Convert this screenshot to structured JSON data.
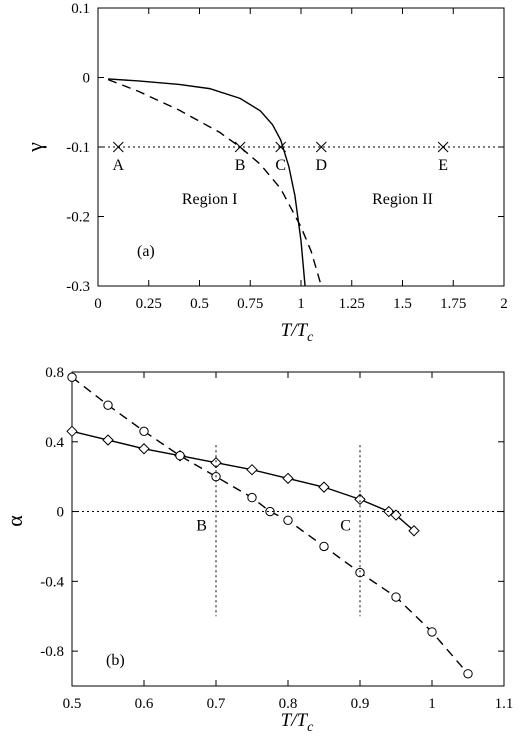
{
  "chart_data": [
    {
      "type": "line",
      "panel_label": "(a)",
      "xlabel": {
        "main": "T/T",
        "sub": "c"
      },
      "ylabel": "γ",
      "xlim": [
        0,
        2
      ],
      "ylim": [
        -0.3,
        0.1
      ],
      "xticks": [
        0,
        0.25,
        0.5,
        0.75,
        1,
        1.25,
        1.5,
        1.75,
        2
      ],
      "xtick_labels": [
        "0",
        "0.25",
        "0.5",
        "0.75",
        "1",
        "1.25",
        "1.5",
        "1.75",
        "2"
      ],
      "yticks": [
        0.1,
        0,
        -0.1,
        -0.2,
        -0.3
      ],
      "ytick_labels": [
        "0.1",
        "0",
        "-0.1",
        "-0.2",
        "-0.3"
      ],
      "grid": false,
      "series": [
        {
          "style": "solid",
          "x": [
            0.05,
            0.2,
            0.4,
            0.55,
            0.7,
            0.8,
            0.86,
            0.9,
            0.94,
            0.97,
            1.0,
            1.02
          ],
          "y": [
            -0.002,
            -0.005,
            -0.01,
            -0.016,
            -0.03,
            -0.048,
            -0.068,
            -0.09,
            -0.128,
            -0.17,
            -0.235,
            -0.3
          ]
        },
        {
          "style": "dashed",
          "x": [
            0.05,
            0.2,
            0.4,
            0.6,
            0.7,
            0.8,
            0.9,
            1.0,
            1.05,
            1.1
          ],
          "y": [
            -0.003,
            -0.02,
            -0.047,
            -0.079,
            -0.1,
            -0.125,
            -0.16,
            -0.215,
            -0.25,
            -0.3
          ]
        },
        {
          "style": "dotted",
          "x": [
            0,
            2
          ],
          "y": [
            -0.1,
            -0.1
          ]
        },
        {
          "style": "cross",
          "x": [
            0.1,
            0.7,
            0.9,
            1.1,
            1.7
          ],
          "y": [
            -0.1,
            -0.1,
            -0.1,
            -0.1,
            -0.1
          ]
        }
      ],
      "point_labels": [
        {
          "text": "A",
          "x": 0.1,
          "y": -0.133
        },
        {
          "text": "B",
          "x": 0.7,
          "y": -0.133
        },
        {
          "text": "C",
          "x": 0.9,
          "y": -0.133
        },
        {
          "text": "D",
          "x": 1.1,
          "y": -0.133
        },
        {
          "text": "E",
          "x": 1.7,
          "y": -0.133
        }
      ],
      "annotations": [
        {
          "text": "Region I",
          "x": 0.55,
          "y": -0.182
        },
        {
          "text": "Region II",
          "x": 1.5,
          "y": -0.182
        }
      ]
    },
    {
      "type": "line",
      "panel_label": "(b)",
      "xlabel": {
        "main": "T/T",
        "sub": "c"
      },
      "ylabel": "α",
      "xlim": [
        0.5,
        1.1
      ],
      "ylim": [
        -1.0,
        0.8
      ],
      "xticks": [
        0.5,
        0.6,
        0.7,
        0.8,
        0.9,
        1.0,
        1.1
      ],
      "xtick_labels": [
        "0.5",
        "0.6",
        "0.7",
        "0.8",
        "0.9",
        "1",
        "1.1"
      ],
      "yticks": [
        0.8,
        0.4,
        0,
        -0.4,
        -0.8
      ],
      "ytick_labels": [
        "0.8",
        "0.4",
        "0",
        "-0.4",
        "-0.8"
      ],
      "grid": false,
      "series": [
        {
          "style": "solid",
          "marker": "diamond",
          "x": [
            0.5,
            0.55,
            0.6,
            0.65,
            0.7,
            0.75,
            0.8,
            0.85,
            0.9,
            0.94,
            0.95,
            0.975
          ],
          "y": [
            0.46,
            0.41,
            0.36,
            0.32,
            0.28,
            0.24,
            0.19,
            0.14,
            0.07,
            0.0,
            -0.02,
            -0.11
          ]
        },
        {
          "style": "dashed",
          "marker": "circle",
          "x": [
            0.5,
            0.55,
            0.6,
            0.65,
            0.7,
            0.75,
            0.775,
            0.8,
            0.85,
            0.9,
            0.95,
            1.0,
            1.05
          ],
          "y": [
            0.77,
            0.61,
            0.46,
            0.32,
            0.2,
            0.08,
            0.0,
            -0.05,
            -0.2,
            -0.35,
            -0.49,
            -0.69,
            -0.93
          ]
        },
        {
          "style": "dotted",
          "x": [
            0.5,
            1.1
          ],
          "y": [
            0,
            0
          ]
        },
        {
          "style": "dotted",
          "x": [
            0.7,
            0.7
          ],
          "y": [
            0.38,
            -0.6
          ]
        },
        {
          "style": "dotted",
          "x": [
            0.9,
            0.9
          ],
          "y": [
            0.38,
            -0.6
          ]
        }
      ],
      "point_labels": [
        {
          "text": "B",
          "x": 0.68,
          "y": -0.11
        },
        {
          "text": "C",
          "x": 0.88,
          "y": -0.11
        }
      ]
    }
  ]
}
